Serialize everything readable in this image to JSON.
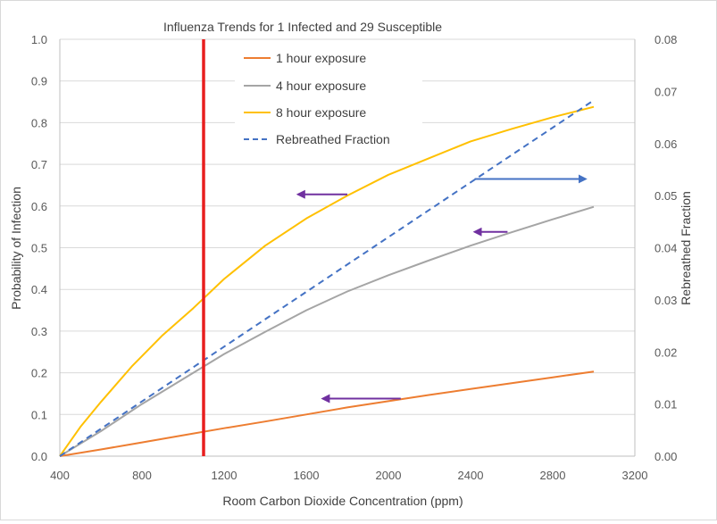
{
  "chart_data": {
    "type": "line",
    "title": "Influenza Trends for 1 Infected and 29 Susceptible",
    "xlabel": "Room Carbon Dioxide Concentration (ppm)",
    "ylabel": "Probability of Infection",
    "y2label": "Rebreathed Fraction",
    "xlim": [
      400,
      3200
    ],
    "ylim": [
      0,
      1.0
    ],
    "y2lim": [
      0,
      0.08
    ],
    "xticks": [
      "400",
      "800",
      "1200",
      "1600",
      "2000",
      "2400",
      "2800",
      "3200"
    ],
    "yticks": [
      "0.0",
      "0.1",
      "0.2",
      "0.3",
      "0.4",
      "0.5",
      "0.6",
      "0.7",
      "0.8",
      "0.9",
      "1.0"
    ],
    "y2ticks": [
      "0.00",
      "0.01",
      "0.02",
      "0.03",
      "0.04",
      "0.05",
      "0.06",
      "0.07",
      "0.08"
    ],
    "grid": "horizontal",
    "legend_position": "top-center",
    "series": [
      {
        "name": "1 hour exposure",
        "color": "#ED7D31",
        "style": "solid",
        "axis": "left",
        "x": [
          400,
          600,
          800,
          1000,
          1200,
          1400,
          1600,
          1800,
          2000,
          2200,
          2400,
          2600,
          2800,
          3000
        ],
        "y": [
          0.0,
          0.016,
          0.033,
          0.05,
          0.067,
          0.083,
          0.1,
          0.117,
          0.132,
          0.147,
          0.161,
          0.175,
          0.189,
          0.203
        ]
      },
      {
        "name": "4 hour exposure",
        "color": "#A5A5A5",
        "style": "solid",
        "axis": "left",
        "x": [
          400,
          600,
          800,
          1000,
          1200,
          1400,
          1600,
          1800,
          2000,
          2200,
          2400,
          2600,
          2800,
          3000
        ],
        "y": [
          0.0,
          0.06,
          0.125,
          0.185,
          0.245,
          0.298,
          0.35,
          0.395,
          0.434,
          0.47,
          0.505,
          0.537,
          0.568,
          0.598
        ]
      },
      {
        "name": "8 hour exposure",
        "color": "#FFC000",
        "style": "solid",
        "axis": "left",
        "x": [
          400,
          500,
          600,
          750,
          900,
          1050,
          1200,
          1400,
          1600,
          1800,
          2000,
          2200,
          2400,
          2600,
          2800,
          3000
        ],
        "y": [
          0.0,
          0.07,
          0.13,
          0.215,
          0.29,
          0.355,
          0.425,
          0.505,
          0.57,
          0.625,
          0.675,
          0.715,
          0.755,
          0.785,
          0.813,
          0.838
        ]
      },
      {
        "name": "Rebreathed Fraction",
        "color": "#4472C4",
        "style": "dashed",
        "axis": "right",
        "x": [
          400,
          3000
        ],
        "y": [
          0.0,
          0.0683
        ]
      }
    ],
    "vertical_line": {
      "x": 1100,
      "color": "#E81E1E"
    },
    "arrows": [
      {
        "color": "#7030A0",
        "x_from": 1800,
        "x_to": 1560,
        "y": 0.628,
        "axis": "left"
      },
      {
        "color": "#7030A0",
        "x_from": 2580,
        "x_to": 2420,
        "y": 0.538,
        "axis": "left"
      },
      {
        "color": "#7030A0",
        "x_from": 2060,
        "x_to": 1680,
        "y": 0.138,
        "axis": "left"
      },
      {
        "color": "#4472C4",
        "x_from": 2420,
        "x_to": 2960,
        "y": 0.665,
        "axis": "left"
      }
    ]
  }
}
